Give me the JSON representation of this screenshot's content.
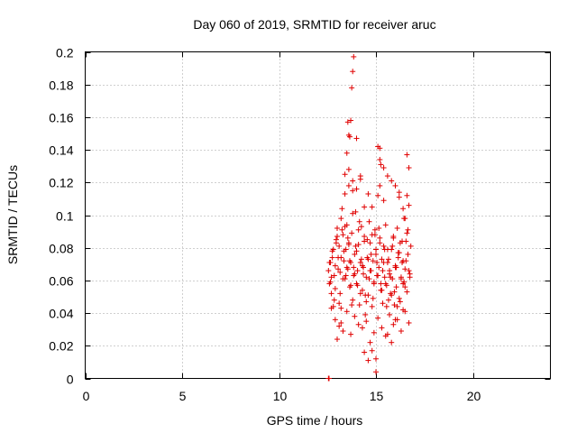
{
  "chart_data": {
    "type": "scatter",
    "title": "Day 060 of 2019, SRMTID for receiver aruc",
    "xlabel": "GPS time / hours",
    "ylabel": "SRMTID / TECUs",
    "xlim": [
      0,
      24
    ],
    "ylim": [
      0,
      0.2
    ],
    "xticks": [
      0,
      5,
      10,
      15,
      20
    ],
    "xtick_labels": [
      "0",
      "5",
      "10",
      "15",
      "20"
    ],
    "yticks": [
      0,
      0.02,
      0.04,
      0.06,
      0.08,
      0.1,
      0.12,
      0.14,
      0.16,
      0.18,
      0.2
    ],
    "ytick_labels": [
      "0",
      "0.02",
      "0.04",
      "0.06",
      "0.08",
      "0.1",
      "0.12",
      "0.14",
      "0.16",
      "0.18",
      "0.2"
    ],
    "grid": true,
    "marker": "+",
    "color": "#e00000",
    "series": [
      {
        "name": "SRMTID",
        "x": [
          12.55,
          12.6,
          12.65,
          12.7,
          12.75,
          12.8,
          12.85,
          12.9,
          12.95,
          13.0,
          13.05,
          13.1,
          13.15,
          13.2,
          13.25,
          13.3,
          13.35,
          13.4,
          13.45,
          13.5,
          13.55,
          13.6,
          13.65,
          13.7,
          13.75,
          13.8,
          13.85,
          13.9,
          13.95,
          14.0,
          14.05,
          14.1,
          14.15,
          14.2,
          14.25,
          14.3,
          14.35,
          14.4,
          14.45,
          14.5,
          14.55,
          14.6,
          14.65,
          14.7,
          14.75,
          14.8,
          14.85,
          14.9,
          14.95,
          15.0,
          15.05,
          15.1,
          15.15,
          15.2,
          15.25,
          15.3,
          15.35,
          15.4,
          15.45,
          15.5,
          15.55,
          15.6,
          15.65,
          15.7,
          15.75,
          15.8,
          15.85,
          15.9,
          15.95,
          16.0,
          16.05,
          16.1,
          16.15,
          16.2,
          16.25,
          16.3,
          16.35,
          16.4,
          16.45,
          16.5,
          16.55,
          16.6,
          16.65,
          16.7,
          16.75,
          16.8,
          12.6,
          12.7,
          12.8,
          12.9,
          13.0,
          13.1,
          13.2,
          13.3,
          13.4,
          13.5,
          13.6,
          13.7,
          13.8,
          13.9,
          14.0,
          14.1,
          14.2,
          14.3,
          14.4,
          14.5,
          14.6,
          14.7,
          14.8,
          14.9,
          15.0,
          15.1,
          15.2,
          15.3,
          15.4,
          15.5,
          15.6,
          15.7,
          15.8,
          15.9,
          16.0,
          16.1,
          16.2,
          16.3,
          16.4,
          16.5,
          16.6,
          16.7,
          12.65,
          12.75,
          12.85,
          12.95,
          13.05,
          13.15,
          13.25,
          13.35,
          13.45,
          13.55,
          13.65,
          13.75,
          13.85,
          13.95,
          14.05,
          14.15,
          14.25,
          14.35,
          14.45,
          14.55,
          14.65,
          14.75,
          14.85,
          14.95,
          15.05,
          15.15,
          15.25,
          15.35,
          15.45,
          15.55,
          15.65,
          15.75,
          15.85,
          15.95,
          16.05,
          16.15,
          16.25,
          16.35,
          16.45,
          16.55,
          16.65,
          16.75,
          12.7,
          12.9,
          13.1,
          13.3,
          13.5,
          13.7,
          13.9,
          14.1,
          14.3,
          14.5,
          14.7,
          14.9,
          15.1,
          15.3,
          15.5,
          15.7,
          15.9,
          16.1,
          16.3,
          16.5,
          16.7,
          13.0,
          13.2,
          13.4,
          13.6,
          13.8,
          14.0,
          14.2,
          14.4,
          14.6,
          14.8,
          15.0,
          15.2,
          15.4,
          15.6,
          15.8,
          16.0,
          16.2,
          16.4,
          16.6,
          13.2,
          13.4,
          13.6,
          13.8,
          14.0,
          14.2,
          14.4,
          14.6,
          14.8,
          15.0,
          15.2,
          15.4,
          15.6,
          15.8,
          16.0,
          16.2,
          16.4,
          16.6,
          13.5,
          13.55,
          13.6,
          13.65,
          13.7,
          13.75,
          13.8,
          13.85,
          15.1,
          15.2,
          15.25,
          16.5,
          16.7,
          12.55,
          12.56,
          12.57,
          12.58
        ],
        "y": [
          0.066,
          0.058,
          0.071,
          0.052,
          0.078,
          0.044,
          0.063,
          0.069,
          0.085,
          0.092,
          0.074,
          0.081,
          0.065,
          0.098,
          0.104,
          0.088,
          0.072,
          0.061,
          0.079,
          0.094,
          0.067,
          0.083,
          0.056,
          0.071,
          0.089,
          0.048,
          0.063,
          0.076,
          0.102,
          0.058,
          0.066,
          0.082,
          0.045,
          0.071,
          0.093,
          0.054,
          0.068,
          0.087,
          0.039,
          0.062,
          0.074,
          0.051,
          0.096,
          0.083,
          0.066,
          0.044,
          0.072,
          0.058,
          0.091,
          0.079,
          0.063,
          0.112,
          0.068,
          0.086,
          0.054,
          0.073,
          0.046,
          0.081,
          0.062,
          0.094,
          0.057,
          0.071,
          0.048,
          0.066,
          0.052,
          0.079,
          0.061,
          0.087,
          0.045,
          0.068,
          0.056,
          0.092,
          0.074,
          0.049,
          0.083,
          0.062,
          0.071,
          0.058,
          0.098,
          0.067,
          0.084,
          0.053,
          0.076,
          0.106,
          0.062,
          0.081,
          0.071,
          0.062,
          0.079,
          0.055,
          0.087,
          0.046,
          0.074,
          0.061,
          0.093,
          0.068,
          0.082,
          0.057,
          0.101,
          0.064,
          0.078,
          0.091,
          0.052,
          0.069,
          0.084,
          0.047,
          0.073,
          0.066,
          0.088,
          0.059,
          0.076,
          0.063,
          0.083,
          0.054,
          0.071,
          0.058,
          0.079,
          0.064,
          0.051,
          0.086,
          0.069,
          0.044,
          0.077,
          0.061,
          0.072,
          0.056,
          0.089,
          0.066,
          0.059,
          0.074,
          0.048,
          0.083,
          0.067,
          0.052,
          0.091,
          0.078,
          0.063,
          0.086,
          0.072,
          0.045,
          0.068,
          0.081,
          0.057,
          0.096,
          0.073,
          0.064,
          0.051,
          0.085,
          0.061,
          0.076,
          0.049,
          0.088,
          0.071,
          0.092,
          0.058,
          0.066,
          0.079,
          0.044,
          0.073,
          0.062,
          0.081,
          0.053,
          0.068,
          0.077,
          0.047,
          0.084,
          0.059,
          0.072,
          0.091,
          0.064,
          0.043,
          0.036,
          0.032,
          0.029,
          0.041,
          0.027,
          0.038,
          0.033,
          0.031,
          0.035,
          0.022,
          0.028,
          0.037,
          0.031,
          0.026,
          0.039,
          0.033,
          0.036,
          0.029,
          0.041,
          0.034,
          0.024,
          0.043,
          0.113,
          0.128,
          0.121,
          0.116,
          0.124,
          0.105,
          0.113,
          0.017,
          0.012,
          0.118,
          0.109,
          0.027,
          0.121,
          0.036,
          0.114,
          0.042,
          0.112,
          0.034,
          0.125,
          0.118,
          0.115,
          0.147,
          0.122,
          0.016,
          0.011,
          0.105,
          0.004,
          0.141,
          0.129,
          0.124,
          0.022,
          0.118,
          0.111,
          0.104,
          0.137,
          0.138,
          0.157,
          0.149,
          0.148,
          0.158,
          0.178,
          0.188,
          0.197,
          0.142,
          0.134,
          0.131,
          0.098,
          0.129,
          0.0,
          0.0,
          0.0,
          0.0
        ]
      }
    ]
  }
}
